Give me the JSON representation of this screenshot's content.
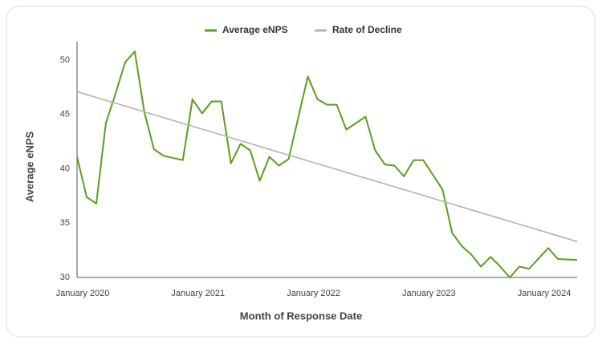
{
  "chart_data": {
    "type": "line",
    "xlabel": "Month of Response Date",
    "ylabel": "Average eNPS",
    "x": [
      "2020-01",
      "2020-02",
      "2020-03",
      "2020-04",
      "2020-05",
      "2020-06",
      "2020-07",
      "2020-08",
      "2020-09",
      "2020-10",
      "2020-12",
      "2021-01",
      "2021-02",
      "2021-03",
      "2021-04",
      "2021-05",
      "2021-06",
      "2021-07",
      "2021-08",
      "2021-09",
      "2021-10",
      "2021-11",
      "2022-01",
      "2022-02",
      "2022-03",
      "2022-04",
      "2022-05",
      "2022-07",
      "2022-08",
      "2022-09",
      "2022-10",
      "2022-11",
      "2022-12",
      "2023-01",
      "2023-03",
      "2023-04",
      "2023-05",
      "2023-06",
      "2023-07",
      "2023-08",
      "2023-09",
      "2023-10",
      "2023-11",
      "2023-12",
      "2024-02",
      "2024-03",
      "2024-05"
    ],
    "series": [
      {
        "name": "Average eNPS",
        "color": "#5a9e1e",
        "values": [
          41.1,
          37.4,
          36.8,
          44.2,
          46.9,
          49.8,
          50.8,
          45.2,
          41.8,
          41.2,
          40.8,
          46.4,
          45.1,
          46.2,
          46.2,
          40.5,
          42.3,
          41.7,
          38.9,
          41.1,
          40.3,
          40.9,
          48.5,
          46.4,
          45.9,
          45.9,
          43.6,
          44.8,
          41.7,
          40.4,
          40.3,
          39.3,
          40.8,
          40.8,
          38.1,
          34.1,
          32.9,
          32.1,
          31.0,
          31.9,
          31.0,
          30.0,
          31.0,
          30.8,
          32.7,
          31.7,
          31.6
        ]
      },
      {
        "name": "Rate of Decline",
        "color": "#b3b3b3",
        "x": [
          "2020-01",
          "2024-05"
        ],
        "values": [
          47.1,
          33.3
        ]
      }
    ],
    "xlim": [
      "2020-01",
      "2024-05"
    ],
    "xticks": [
      {
        "value": "2020-01",
        "label": "January 2020"
      },
      {
        "value": "2021-01",
        "label": "January 2021"
      },
      {
        "value": "2022-01",
        "label": "January 2022"
      },
      {
        "value": "2023-01",
        "label": "January 2023"
      },
      {
        "value": "2024-01",
        "label": "January 2024"
      }
    ],
    "ylim": [
      30,
      51.7
    ],
    "yticks": [
      30,
      35,
      40,
      45,
      50
    ],
    "grid": false,
    "legend": "top"
  }
}
